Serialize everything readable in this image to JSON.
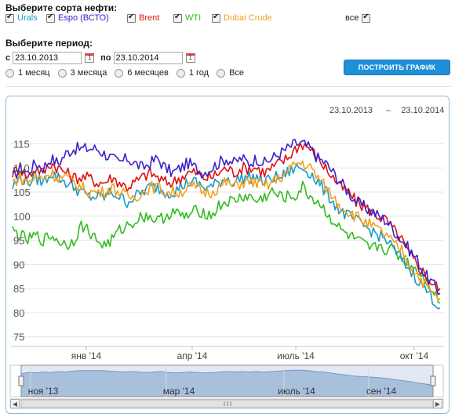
{
  "oil_section": {
    "title": "Выберите сорта нефти:",
    "grades": [
      {
        "label": "Urals",
        "color": "#1a9bc7",
        "checked": true
      },
      {
        "label": "Espo (ВСТО)",
        "color": "#3a22c8",
        "checked": true
      },
      {
        "label": "Brent",
        "color": "#e01010",
        "checked": true
      },
      {
        "label": "WTI",
        "color": "#33bb22",
        "checked": true
      },
      {
        "label": "Dubai Crude",
        "color": "#f5a020",
        "checked": true
      }
    ],
    "all_label": "все",
    "all_checked": true
  },
  "period_section": {
    "title": "Выберите период:",
    "from_label": "с",
    "from_value": "23.10.2013",
    "to_label": "по",
    "to_value": "23.10.2014",
    "quick_options": [
      "1 месяц",
      "3 месяца",
      "6 месяцев",
      "1 год",
      "Все"
    ]
  },
  "build_button": "ПОСТРОИТЬ ГРАФИК",
  "chart_header": {
    "from": "23.10.2013",
    "sep": "–",
    "to": "23.10.2014"
  },
  "chart_data": {
    "type": "line",
    "ylim": [
      75,
      115
    ],
    "yticks": [
      75,
      80,
      85,
      90,
      95,
      100,
      105,
      110,
      115
    ],
    "xticks": [
      "янв '14",
      "апр '14",
      "июль '14",
      "окт '14"
    ],
    "navigator_labels": [
      "ноя '13",
      "мар '14",
      "июль '14",
      "сен '14"
    ],
    "series": [
      {
        "name": "Espo (ВСТО)",
        "color": "#3a22c8",
        "values": [
          108,
          110,
          109,
          111,
          110,
          112,
          111,
          113,
          114,
          114,
          114,
          114,
          113,
          112,
          111,
          112,
          111,
          110,
          111,
          112,
          110,
          109,
          110,
          111,
          110,
          109,
          110,
          111,
          112,
          111,
          112,
          111,
          112,
          111,
          112,
          113,
          114,
          115,
          115,
          114,
          112,
          111,
          109,
          107,
          105,
          103,
          102,
          101,
          100,
          99,
          97,
          95,
          93,
          91,
          88,
          86,
          84
        ]
      },
      {
        "name": "Brent",
        "color": "#e01010",
        "values": [
          109,
          110,
          108,
          110,
          109,
          111,
          110,
          109,
          108,
          108,
          108,
          107,
          107,
          108,
          107,
          106,
          107,
          108,
          109,
          108,
          107,
          107,
          108,
          109,
          109,
          108,
          108,
          109,
          110,
          109,
          110,
          110,
          110,
          109,
          110,
          111,
          112,
          114,
          115,
          114,
          112,
          110,
          108,
          106,
          105,
          103,
          102,
          101,
          100,
          99,
          97,
          95,
          92,
          90,
          88,
          86,
          85
        ]
      },
      {
        "name": "Urals",
        "color": "#1a9bc7",
        "values": [
          106,
          108,
          107,
          108,
          107,
          109,
          108,
          107,
          106,
          105,
          104,
          104,
          104,
          105,
          104,
          103,
          104,
          105,
          106,
          106,
          105,
          105,
          106,
          107,
          107,
          106,
          106,
          107,
          108,
          107,
          108,
          108,
          108,
          107,
          108,
          108,
          109,
          110,
          110,
          109,
          107,
          105,
          103,
          101,
          100,
          99,
          98,
          97,
          96,
          95,
          93,
          91,
          89,
          87,
          85,
          83,
          81
        ]
      },
      {
        "name": "Dubai Crude",
        "color": "#f5a020",
        "values": [
          107,
          108,
          107,
          108,
          108,
          109,
          108,
          108,
          107,
          106,
          105,
          105,
          105,
          106,
          105,
          104,
          104,
          105,
          106,
          106,
          105,
          105,
          105,
          106,
          106,
          105,
          105,
          106,
          107,
          106,
          107,
          107,
          107,
          106,
          107,
          108,
          109,
          111,
          111,
          110,
          108,
          106,
          104,
          102,
          101,
          100,
          99,
          98,
          97,
          96,
          94,
          93,
          90,
          88,
          86,
          84,
          83
        ]
      },
      {
        "name": "WTI",
        "color": "#33bb22",
        "values": [
          97,
          96,
          95,
          96,
          95,
          96,
          95,
          94,
          95,
          98,
          97,
          95,
          94,
          95,
          97,
          98,
          99,
          100,
          100,
          99,
          100,
          101,
          100,
          100,
          101,
          101,
          100,
          102,
          103,
          103,
          104,
          104,
          103,
          104,
          105,
          104,
          104,
          104,
          106,
          104,
          103,
          101,
          99,
          97,
          96,
          95,
          94,
          93,
          94,
          93,
          93,
          91,
          90,
          89,
          87,
          85,
          82
        ]
      }
    ]
  },
  "nav_arrows": {
    "left": "◀",
    "right": "▶"
  }
}
